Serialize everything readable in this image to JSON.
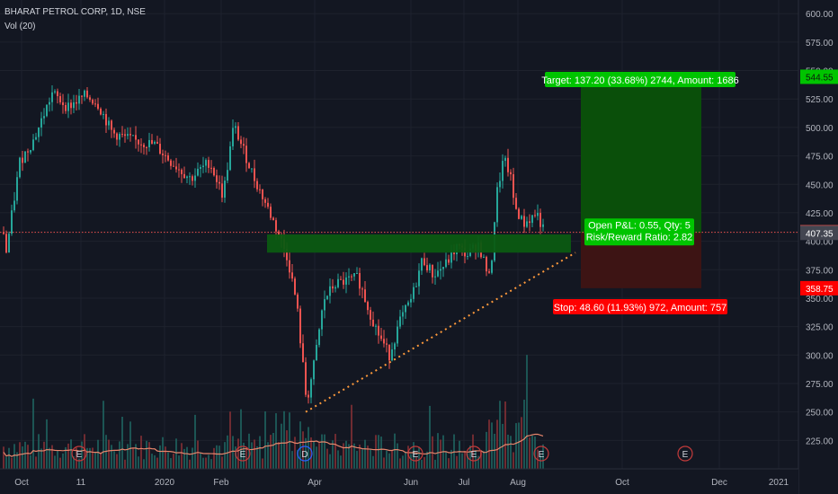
{
  "legend": {
    "symbol": "BHARAT PETROL CORP, 1D, NSE",
    "indicator": "Vol (20)"
  },
  "colors": {
    "background": "#131722",
    "up": "#26a69a",
    "down": "#ef5350",
    "profit_zone": "#0a4f0a",
    "loss_zone": "#3d1414",
    "target_label": "#00c400",
    "stop_label": "#ff0000",
    "support_zone": "#0b5a12",
    "current_line": "#ef5350",
    "trend_line": "#ff9a3c",
    "volume_ma": "#e7866c"
  },
  "chart_data": {
    "type": "candlestick",
    "y_axis": {
      "range": [
        200,
        612
      ],
      "ticks": [
        225,
        250,
        275,
        300,
        325,
        350,
        375,
        400,
        425,
        450,
        475,
        500,
        525,
        550,
        575,
        600
      ]
    },
    "x_axis": {
      "ticks": [
        "Oct",
        "11",
        "2020",
        "Feb",
        "Apr",
        "Jun",
        "Jul",
        "Aug",
        "Oct",
        "Dec",
        "2021"
      ]
    },
    "price_tags": {
      "target": "544.55",
      "current": "407.90",
      "entry": "407.35",
      "stop": "358.75"
    },
    "position": {
      "target_text": "Target: 137.20 (33.68%) 2744, Amount: 1686",
      "stop_text": "Stop: 48.60 (11.93%) 972, Amount: 757",
      "pnl_text": "Open P&L: 0.55, Qty: 5",
      "rr_text": "Risk/Reward Ratio: 2.82",
      "entry": 407.35,
      "target": 544.55,
      "stop": 358.75
    },
    "support_zone": [
      390,
      406
    ],
    "current_price": 407.9,
    "trend_line": [
      [
        340,
        250
      ],
      [
        640,
        390
      ]
    ],
    "event_markers": [
      {
        "x": 88,
        "label": "E"
      },
      {
        "x": 270,
        "label": "E"
      },
      {
        "x": 339,
        "label": "D"
      },
      {
        "x": 462,
        "label": "E"
      },
      {
        "x": 527,
        "label": "E"
      },
      {
        "x": 602,
        "label": "E"
      },
      {
        "x": 762,
        "label": "E"
      }
    ],
    "series": [
      {
        "name": "price",
        "points": [
          [
            5,
            380
          ],
          [
            22,
            470
          ],
          [
            38,
            490
          ],
          [
            58,
            530
          ],
          [
            75,
            518
          ],
          [
            95,
            528
          ],
          [
            108,
            522
          ],
          [
            125,
            495
          ],
          [
            150,
            488
          ],
          [
            172,
            485
          ],
          [
            190,
            470
          ],
          [
            212,
            455
          ],
          [
            233,
            470
          ],
          [
            248,
            440
          ],
          [
            260,
            502
          ],
          [
            283,
            455
          ],
          [
            300,
            425
          ],
          [
            313,
            400
          ],
          [
            320,
            385
          ],
          [
            330,
            345
          ],
          [
            341,
            258
          ],
          [
            350,
            295
          ],
          [
            360,
            348
          ],
          [
            372,
            362
          ],
          [
            385,
            365
          ],
          [
            398,
            368
          ],
          [
            410,
            340
          ],
          [
            420,
            320
          ],
          [
            433,
            300
          ],
          [
            445,
            330
          ],
          [
            458,
            350
          ],
          [
            470,
            385
          ],
          [
            482,
            370
          ],
          [
            496,
            380
          ],
          [
            508,
            395
          ],
          [
            520,
            388
          ],
          [
            532,
            398
          ],
          [
            545,
            365
          ],
          [
            552,
            440
          ],
          [
            560,
            472
          ],
          [
            567,
            460
          ],
          [
            572,
            432
          ],
          [
            582,
            415
          ],
          [
            590,
            420
          ],
          [
            597,
            425
          ],
          [
            605,
            408
          ]
        ]
      }
    ]
  }
}
